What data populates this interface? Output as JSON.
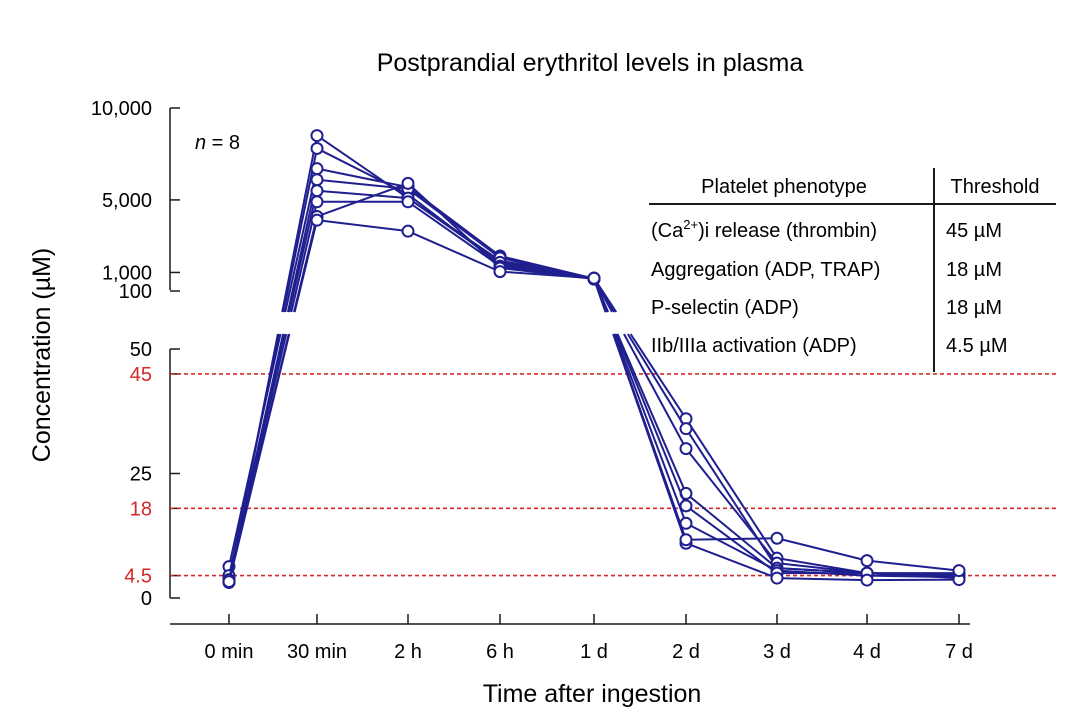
{
  "chart_data": {
    "type": "line",
    "title": "Postprandial erythritol levels in plasma",
    "xlabel": "Time after ingestion",
    "ylabel": "Concentration (µM)",
    "sample_label": {
      "n_italic": "n",
      "rest": " = 8"
    },
    "categories": [
      "0 min",
      "30 min",
      "2 h",
      "6 h",
      "1 d",
      "2 d",
      "3 d",
      "4 d",
      "7 d"
    ],
    "y_scale": "broken axis: linear 0–50 µM (lower segment), 100–10,000 µM (upper segment)",
    "y_ticks_upper": [
      "10,000",
      "5,000",
      "1,000",
      "100"
    ],
    "y_ticks_lower": [
      "50",
      "25",
      "0"
    ],
    "y_ticks_threshold": [
      "45",
      "18",
      "4.5"
    ],
    "thresholds": [
      45,
      18,
      4.5
    ],
    "threshold_color": "#d62828",
    "series_color": "#1f1f8f",
    "series": [
      {
        "values": [
          3.2,
          8500,
          5100,
          1700,
          750,
          36,
          8,
          5,
          4.5
        ]
      },
      {
        "values": [
          4.0,
          7800,
          5300,
          1500,
          700,
          34,
          6,
          5,
          4.6
        ]
      },
      {
        "values": [
          6.3,
          6700,
          5700,
          1950,
          720,
          30,
          7,
          5,
          4.3
        ]
      },
      {
        "values": [
          3.5,
          6100,
          5600,
          1850,
          690,
          21,
          6,
          5,
          5.0
        ]
      },
      {
        "values": [
          4.5,
          5500,
          5100,
          1600,
          730,
          15,
          5.5,
          4.5,
          4.2
        ]
      },
      {
        "values": [
          3.7,
          4900,
          4900,
          1400,
          710,
          18.5,
          5,
          5,
          4.0
        ]
      },
      {
        "values": [
          3.1,
          4100,
          5900,
          1300,
          700,
          11,
          4,
          3.6,
          3.7
        ]
      },
      {
        "values": [
          3.3,
          3900,
          3300,
          1100,
          740,
          11.7,
          12,
          7.5,
          5.5
        ]
      }
    ],
    "grid": false,
    "legend": "none"
  },
  "table": {
    "header": {
      "phenotype": "Platelet phenotype",
      "threshold": "Threshold"
    },
    "rows": [
      {
        "phenotype_pre": "(Ca",
        "phenotype_sup": "2+",
        "phenotype_post": ")i release (thrombin)",
        "threshold": "45 µM"
      },
      {
        "phenotype_pre": "Aggregation (ADP, TRAP)",
        "phenotype_sup": "",
        "phenotype_post": "",
        "threshold": "18 µM"
      },
      {
        "phenotype_pre": "P-selectin (ADP)",
        "phenotype_sup": "",
        "phenotype_post": "",
        "threshold": "18 µM"
      },
      {
        "phenotype_pre": "IIb/IIIa activation (ADP)",
        "phenotype_sup": "",
        "phenotype_post": "",
        "threshold": "4.5 µM"
      }
    ]
  }
}
